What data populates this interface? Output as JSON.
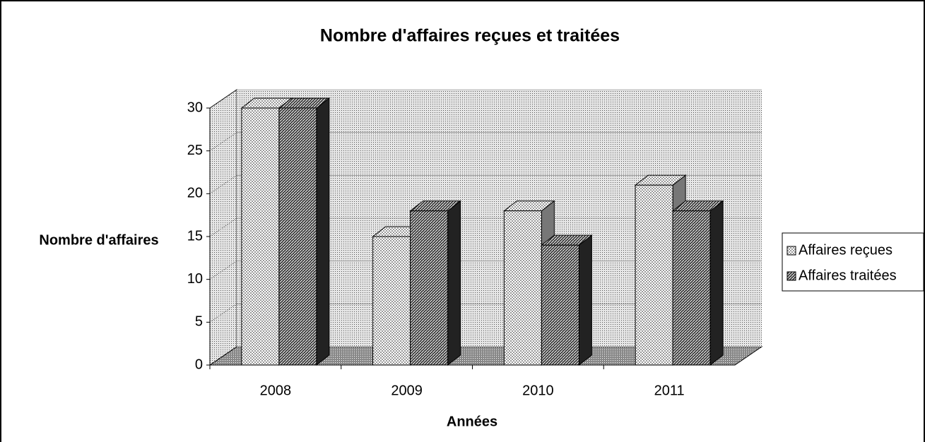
{
  "chart_data": {
    "type": "bar3d",
    "title": "Nombre d'affaires reçues et traitées",
    "x_label": "Années",
    "y_label": "Nombre d'affaires",
    "categories": [
      "2008",
      "2009",
      "2010",
      "2011"
    ],
    "series": [
      {
        "name": "Affaires reçues",
        "color": "#9a9a9a",
        "values": [
          30,
          15,
          18,
          21
        ]
      },
      {
        "name": "Affaires traitées",
        "color": "#3a3a3a",
        "values": [
          30,
          18,
          14,
          18
        ]
      }
    ],
    "ylim": [
      0,
      30
    ],
    "yticks": [
      0,
      5,
      10,
      15,
      20,
      25,
      30
    ],
    "grid": true,
    "legend": "right"
  }
}
